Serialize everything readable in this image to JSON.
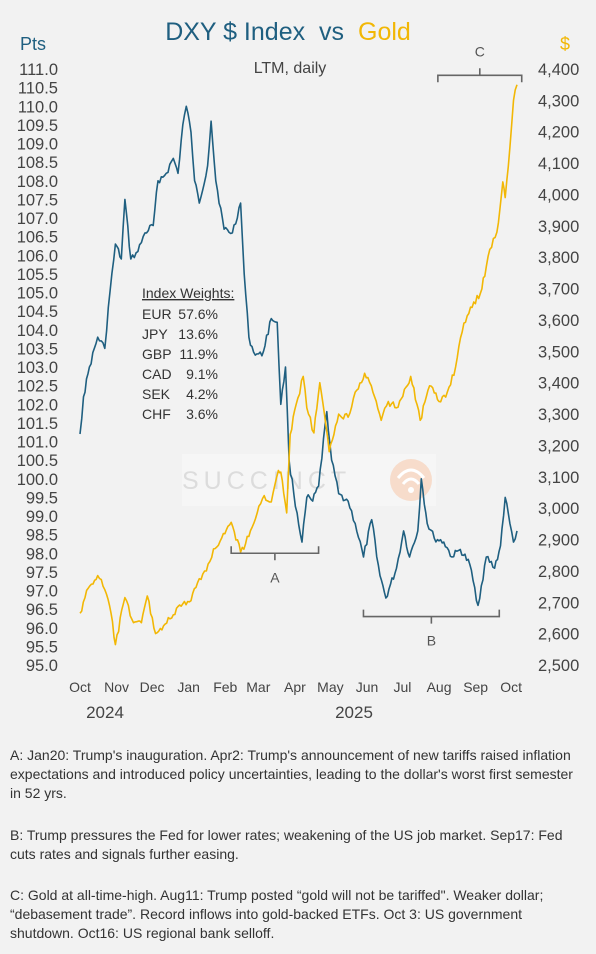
{
  "chart_data": {
    "type": "line",
    "title_parts": [
      "DXY $ Index",
      "vs",
      "Gold"
    ],
    "subtitle": "LTM, daily",
    "left_axis": {
      "label": "Pts",
      "min": 95.0,
      "max": 111.0,
      "step": 0.5,
      "ticks": [
        "95.0",
        "95.5",
        "96.0",
        "96.5",
        "97.0",
        "97.5",
        "98.0",
        "98.5",
        "99.0",
        "99.5",
        "100.0",
        "100.5",
        "101.0",
        "101.5",
        "102.0",
        "102.5",
        "103.0",
        "103.5",
        "104.0",
        "104.5",
        "105.0",
        "105.5",
        "106.0",
        "106.5",
        "107.0",
        "107.5",
        "108.0",
        "108.5",
        "109.0",
        "109.5",
        "110.0",
        "110.5",
        "111.0"
      ]
    },
    "right_axis": {
      "label": "$",
      "min": 2500,
      "max": 4400,
      "step": 100,
      "ticks": [
        "2,500",
        "2,600",
        "2,700",
        "2,800",
        "2,900",
        "3,000",
        "3,100",
        "3,200",
        "3,300",
        "3,400",
        "3,500",
        "3,600",
        "3,700",
        "3,800",
        "3,900",
        "4,000",
        "4,100",
        "4,200",
        "4,300",
        "4,400"
      ]
    },
    "x_axis": {
      "months": [
        "Oct",
        "Nov",
        "Dec",
        "Jan",
        "Feb",
        "Mar",
        "Apr",
        "May",
        "Jun",
        "Jul",
        "Aug",
        "Sep",
        "Oct"
      ],
      "years": [
        "2024",
        "2025"
      ]
    },
    "series": [
      {
        "name": "DXY $ Index",
        "axis": "left",
        "color": "#1f5f80",
        "points": [
          [
            "2024-10-15",
            101.2
          ],
          [
            "2024-10-18",
            102.2
          ],
          [
            "2024-10-23",
            103.0
          ],
          [
            "2024-10-30",
            103.8
          ],
          [
            "2024-11-05",
            103.5
          ],
          [
            "2024-11-08",
            104.6
          ],
          [
            "2024-11-14",
            106.3
          ],
          [
            "2024-11-19",
            105.9
          ],
          [
            "2024-11-22",
            107.5
          ],
          [
            "2024-11-27",
            105.9
          ],
          [
            "2024-12-03",
            106.1
          ],
          [
            "2024-12-09",
            106.6
          ],
          [
            "2024-12-16",
            106.8
          ],
          [
            "2024-12-20",
            108.0
          ],
          [
            "2024-12-27",
            108.2
          ],
          [
            "2025-01-02",
            108.6
          ],
          [
            "2025-01-06",
            108.2
          ],
          [
            "2025-01-10",
            109.5
          ],
          [
            "2025-01-13",
            110.0
          ],
          [
            "2025-01-17",
            109.3
          ],
          [
            "2025-01-20",
            108.0
          ],
          [
            "2025-01-24",
            107.4
          ],
          [
            "2025-01-31",
            108.4
          ],
          [
            "2025-02-03",
            109.6
          ],
          [
            "2025-02-07",
            108.0
          ],
          [
            "2025-02-14",
            106.7
          ],
          [
            "2025-02-21",
            106.6
          ],
          [
            "2025-02-28",
            107.4
          ],
          [
            "2025-03-03",
            105.5
          ],
          [
            "2025-03-07",
            103.8
          ],
          [
            "2025-03-11",
            103.4
          ],
          [
            "2025-03-18",
            103.3
          ],
          [
            "2025-03-26",
            104.3
          ],
          [
            "2025-03-31",
            104.2
          ],
          [
            "2025-04-03",
            102.0
          ],
          [
            "2025-04-07",
            103.0
          ],
          [
            "2025-04-10",
            100.5
          ],
          [
            "2025-04-14",
            99.6
          ],
          [
            "2025-04-21",
            98.3
          ],
          [
            "2025-04-25",
            99.5
          ],
          [
            "2025-04-30",
            99.4
          ],
          [
            "2025-05-05",
            99.8
          ],
          [
            "2025-05-12",
            101.8
          ],
          [
            "2025-05-16",
            100.5
          ],
          [
            "2025-05-22",
            99.6
          ],
          [
            "2025-05-30",
            99.4
          ],
          [
            "2025-06-05",
            98.8
          ],
          [
            "2025-06-12",
            97.9
          ],
          [
            "2025-06-19",
            98.9
          ],
          [
            "2025-06-26",
            97.4
          ],
          [
            "2025-07-01",
            96.8
          ],
          [
            "2025-07-10",
            97.6
          ],
          [
            "2025-07-16",
            98.6
          ],
          [
            "2025-07-21",
            97.9
          ],
          [
            "2025-07-28",
            98.6
          ],
          [
            "2025-07-31",
            100.0
          ],
          [
            "2025-08-05",
            98.8
          ],
          [
            "2025-08-11",
            98.4
          ],
          [
            "2025-08-19",
            98.3
          ],
          [
            "2025-08-26",
            97.9
          ],
          [
            "2025-09-02",
            98.1
          ],
          [
            "2025-09-10",
            97.7
          ],
          [
            "2025-09-17",
            96.6
          ],
          [
            "2025-09-24",
            97.9
          ],
          [
            "2025-10-01",
            97.6
          ],
          [
            "2025-10-06",
            98.2
          ],
          [
            "2025-10-10",
            99.5
          ],
          [
            "2025-10-14",
            98.8
          ],
          [
            "2025-10-17",
            98.3
          ],
          [
            "2025-10-20",
            98.6
          ]
        ]
      },
      {
        "name": "Gold",
        "axis": "right",
        "color": "#f2b705",
        "points": [
          [
            "2024-10-15",
            2665
          ],
          [
            "2024-10-22",
            2745
          ],
          [
            "2024-10-30",
            2785
          ],
          [
            "2024-11-05",
            2740
          ],
          [
            "2024-11-09",
            2690
          ],
          [
            "2024-11-14",
            2565
          ],
          [
            "2024-11-22",
            2715
          ],
          [
            "2024-11-28",
            2645
          ],
          [
            "2024-12-06",
            2635
          ],
          [
            "2024-12-11",
            2720
          ],
          [
            "2024-12-18",
            2600
          ],
          [
            "2024-12-26",
            2630
          ],
          [
            "2025-01-02",
            2660
          ],
          [
            "2025-01-10",
            2695
          ],
          [
            "2025-01-17",
            2705
          ],
          [
            "2025-01-24",
            2775
          ],
          [
            "2025-01-30",
            2800
          ],
          [
            "2025-02-05",
            2870
          ],
          [
            "2025-02-12",
            2905
          ],
          [
            "2025-02-20",
            2955
          ],
          [
            "2025-02-28",
            2860
          ],
          [
            "2025-03-07",
            2910
          ],
          [
            "2025-03-14",
            2985
          ],
          [
            "2025-03-20",
            3040
          ],
          [
            "2025-03-26",
            3020
          ],
          [
            "2025-04-01",
            3120
          ],
          [
            "2025-04-03",
            3115
          ],
          [
            "2025-04-08",
            2985
          ],
          [
            "2025-04-11",
            3235
          ],
          [
            "2025-04-16",
            3330
          ],
          [
            "2025-04-22",
            3420
          ],
          [
            "2025-04-25",
            3320
          ],
          [
            "2025-05-01",
            3240
          ],
          [
            "2025-05-06",
            3400
          ],
          [
            "2025-05-14",
            3180
          ],
          [
            "2025-05-22",
            3300
          ],
          [
            "2025-05-30",
            3290
          ],
          [
            "2025-06-05",
            3370
          ],
          [
            "2025-06-13",
            3430
          ],
          [
            "2025-06-20",
            3370
          ],
          [
            "2025-06-27",
            3280
          ],
          [
            "2025-07-03",
            3340
          ],
          [
            "2025-07-10",
            3320
          ],
          [
            "2025-07-22",
            3420
          ],
          [
            "2025-07-30",
            3280
          ],
          [
            "2025-08-07",
            3390
          ],
          [
            "2025-08-15",
            3340
          ],
          [
            "2025-08-22",
            3370
          ],
          [
            "2025-08-29",
            3450
          ],
          [
            "2025-09-05",
            3590
          ],
          [
            "2025-09-12",
            3640
          ],
          [
            "2025-09-19",
            3685
          ],
          [
            "2025-09-24",
            3770
          ],
          [
            "2025-09-30",
            3860
          ],
          [
            "2025-10-03",
            3880
          ],
          [
            "2025-10-08",
            4040
          ],
          [
            "2025-10-10",
            3990
          ],
          [
            "2025-10-14",
            4150
          ],
          [
            "2025-10-17",
            4300
          ],
          [
            "2025-10-20",
            4350
          ]
        ]
      }
    ],
    "index_weights": {
      "title": "Index Weights:",
      "rows": [
        {
          "code": "EUR",
          "value": "57.6%"
        },
        {
          "code": "JPY",
          "value": "13.6%"
        },
        {
          "code": "GBP",
          "value": "11.9%"
        },
        {
          "code": "CAD",
          "value": "9.1%"
        },
        {
          "code": "SEK",
          "value": "4.2%"
        },
        {
          "code": "CHF",
          "value": "3.6%"
        }
      ]
    },
    "annotations": [
      {
        "label": "A",
        "from": "2025-02-20",
        "to": "2025-05-05",
        "axis": "left",
        "at": 98.0,
        "side": "below"
      },
      {
        "label": "B",
        "from": "2025-06-12",
        "to": "2025-10-05",
        "axis": "left",
        "at": 96.3,
        "side": "below"
      },
      {
        "label": "C",
        "from": "2025-08-14",
        "to": "2025-10-24",
        "axis": "right",
        "at": 4380,
        "side": "above"
      }
    ],
    "notes": [
      "A: Jan20: Trump's inauguration. Apr2: Trump's announcement of new tariffs raised inflation expectations and introduced policy uncertainties, leading to the dollar's worst first semester in 52 yrs.",
      "B: Trump pressures the Fed for lower rates; weakening of the US job market. Sep17: Fed cuts rates and signals further easing.",
      "C: Gold at all-time-high. Aug11: Trump posted “gold will not be tariffed\". Weaker dollar;  “debasement trade”. Record inflows into gold-backed ETFs. Oct 3: US government shutdown. Oct16: US regional bank selloff."
    ],
    "watermark": "SUCCINCT",
    "colors": {
      "dxy": "#1f5f80",
      "gold": "#f2b705",
      "text": "#444444",
      "bracket": "#666666",
      "background": "#f2f2f2"
    }
  }
}
